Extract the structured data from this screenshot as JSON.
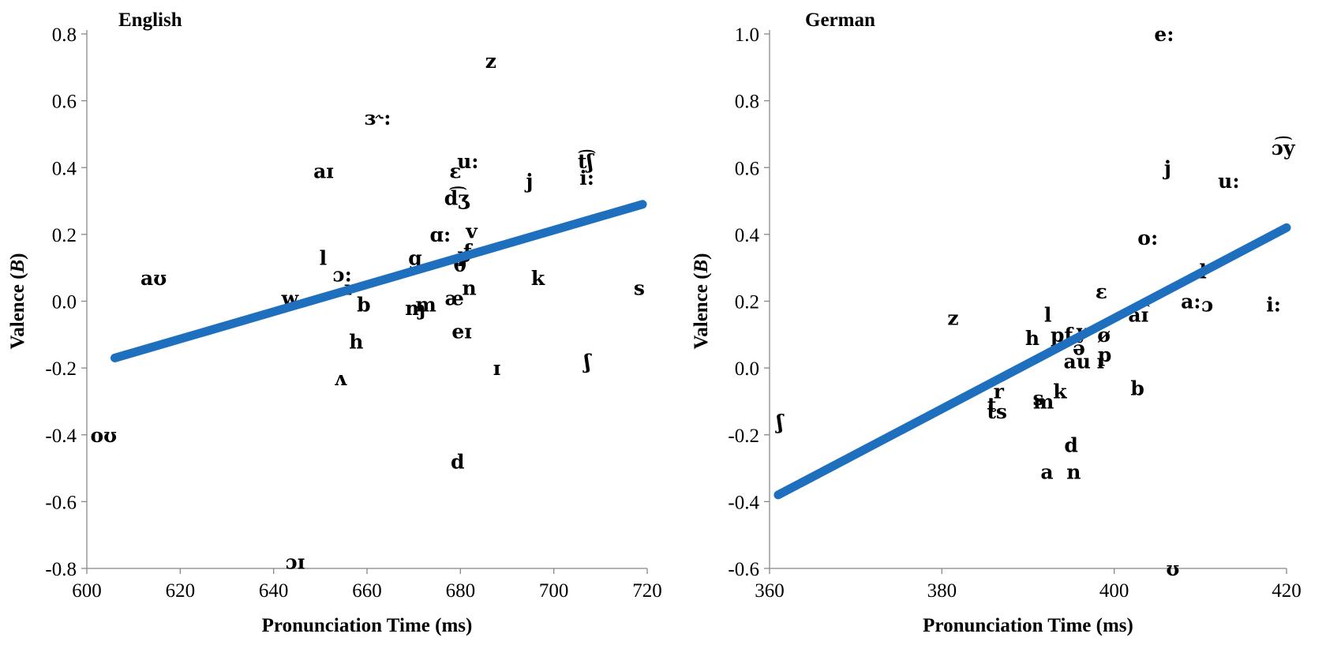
{
  "colors": {
    "trendline": "#1f6fbf",
    "axis": "#888888",
    "text": "#000000"
  },
  "chart_data": [
    {
      "type": "scatter",
      "title": "English",
      "xlabel": "Pronunciation Time (ms)",
      "ylabel": "Valence (B)",
      "ylabel_main": "Valence (",
      "ylabel_italic": "B",
      "ylabel_end": ")",
      "xlim": [
        600,
        720
      ],
      "ylim": [
        -0.8,
        0.8
      ],
      "xticks": [
        600,
        620,
        640,
        660,
        680,
        700,
        720
      ],
      "xtick_labels": [
        "600",
        "620",
        "640",
        "660",
        "680",
        "700",
        "720"
      ],
      "yticks": [
        -0.8,
        -0.6,
        -0.4,
        -0.2,
        0.0,
        0.2,
        0.4,
        0.6,
        0.8
      ],
      "ytick_labels": [
        "-0.8",
        "-0.6",
        "-0.4",
        "-0.2",
        "0.0",
        "0.2",
        "0.4",
        "0.6",
        "0.8"
      ],
      "grid": false,
      "trendline": {
        "x": [
          606,
          719
        ],
        "y": [
          -0.17,
          0.29
        ]
      },
      "points": [
        {
          "label": "z",
          "x": 686.5,
          "y": 0.72
        },
        {
          "label": "ɜ˞:",
          "x": 662.3,
          "y": 0.55
        },
        {
          "label": "aɪ",
          "x": 650.7,
          "y": 0.39
        },
        {
          "label": "ɛ",
          "x": 678.9,
          "y": 0.39
        },
        {
          "label": "u:",
          "x": 681.6,
          "y": 0.42
        },
        {
          "label": "t͡ʃ",
          "x": 706.8,
          "y": 0.42
        },
        {
          "label": "i:",
          "x": 707.1,
          "y": 0.37
        },
        {
          "label": "j",
          "x": 694.8,
          "y": 0.36
        },
        {
          "label": "d͡ʒ",
          "x": 679.2,
          "y": 0.31
        },
        {
          "label": "ɑ:",
          "x": 675.7,
          "y": 0.2
        },
        {
          "label": "v",
          "x": 682.4,
          "y": 0.21
        },
        {
          "label": "f",
          "x": 681.5,
          "y": 0.15
        },
        {
          "label": "l",
          "x": 650.6,
          "y": 0.13
        },
        {
          "label": "ɔ:",
          "x": 654.7,
          "y": 0.08
        },
        {
          "label": "g",
          "x": 670.3,
          "y": 0.13
        },
        {
          "label": "θ",
          "x": 679.9,
          "y": 0.11
        },
        {
          "label": "p",
          "x": 680.8,
          "y": 0.14
        },
        {
          "label": "aʊ",
          "x": 614.3,
          "y": 0.07
        },
        {
          "label": "k",
          "x": 696.6,
          "y": 0.07
        },
        {
          "label": "s",
          "x": 718.3,
          "y": 0.04
        },
        {
          "label": "n",
          "x": 681.9,
          "y": 0.04
        },
        {
          "label": "æ",
          "x": 678.7,
          "y": 0.01
        },
        {
          "label": "w",
          "x": 643.5,
          "y": 0.01
        },
        {
          "label": "r",
          "x": 656.2,
          "y": 0.04
        },
        {
          "label": "b",
          "x": 659.3,
          "y": -0.01
        },
        {
          "label": "ɱ",
          "x": 670.4,
          "y": -0.02
        },
        {
          "label": "m",
          "x": 672.6,
          "y": -0.01
        },
        {
          "label": "eɪ",
          "x": 680.3,
          "y": -0.09
        },
        {
          "label": "h",
          "x": 657.7,
          "y": -0.12
        },
        {
          "label": "ʃ",
          "x": 707.2,
          "y": -0.18
        },
        {
          "label": "ɪ",
          "x": 687.8,
          "y": -0.2
        },
        {
          "label": "ʌ",
          "x": 654.3,
          "y": -0.23
        },
        {
          "label": "oʊ",
          "x": 603.6,
          "y": -0.4
        },
        {
          "label": "d",
          "x": 679.4,
          "y": -0.48
        },
        {
          "label": "ɔɪ",
          "x": 644.6,
          "y": -0.78
        }
      ]
    },
    {
      "type": "scatter",
      "title": "German",
      "xlabel": "Pronunciation Time (ms)",
      "ylabel": "Valence (B)",
      "ylabel_main": "Valence (",
      "ylabel_italic": "B",
      "ylabel_end": ")",
      "xlim": [
        360,
        420
      ],
      "ylim": [
        -0.6,
        1.0
      ],
      "xticks": [
        360,
        380,
        400,
        420
      ],
      "xtick_labels": [
        "360",
        "380",
        "400",
        "420"
      ],
      "yticks": [
        -0.6,
        -0.4,
        -0.2,
        0.0,
        0.2,
        0.4,
        0.6,
        0.8,
        1.0
      ],
      "ytick_labels": [
        "-0.6",
        "-0.4",
        "-0.2",
        "0.0",
        "0.2",
        "0.4",
        "0.6",
        "0.8",
        "1.0"
      ],
      "grid": false,
      "trendline": {
        "x": [
          361,
          420
        ],
        "y": [
          -0.38,
          0.42
        ]
      },
      "points": [
        {
          "label": "e:",
          "x": 405.8,
          "y": 1.0
        },
        {
          "label": "ɔ͡y",
          "x": 419.6,
          "y": 0.66
        },
        {
          "label": "j",
          "x": 406.2,
          "y": 0.6
        },
        {
          "label": "u:",
          "x": 413.3,
          "y": 0.56
        },
        {
          "label": "o:",
          "x": 403.9,
          "y": 0.39
        },
        {
          "label": "l",
          "x": 410.3,
          "y": 0.29
        },
        {
          "label": "ɛ",
          "x": 398.5,
          "y": 0.23
        },
        {
          "label": "a:",
          "x": 408.9,
          "y": 0.2
        },
        {
          "label": "ɔ",
          "x": 410.8,
          "y": 0.19
        },
        {
          "label": "i:",
          "x": 418.5,
          "y": 0.19
        },
        {
          "label": "a͡ɪ",
          "x": 402.8,
          "y": 0.16
        },
        {
          "label": "z",
          "x": 381.3,
          "y": 0.15
        },
        {
          "label": "l",
          "x": 392.3,
          "y": 0.16
        },
        {
          "label": "h",
          "x": 390.5,
          "y": 0.09
        },
        {
          "label": "pf",
          "x": 393.9,
          "y": 0.1
        },
        {
          "label": "y",
          "x": 396.3,
          "y": 0.11
        },
        {
          "label": "ø",
          "x": 398.8,
          "y": 0.1
        },
        {
          "label": "ə",
          "x": 395.9,
          "y": 0.06
        },
        {
          "label": "p",
          "x": 398.9,
          "y": 0.04
        },
        {
          "label": "au",
          "x": 395.7,
          "y": 0.02
        },
        {
          "label": "ɪ",
          "x": 398.4,
          "y": 0.02
        },
        {
          "label": "b",
          "x": 402.7,
          "y": -0.06
        },
        {
          "label": "r",
          "x": 386.6,
          "y": -0.07
        },
        {
          "label": "k",
          "x": 393.7,
          "y": -0.07
        },
        {
          "label": "s",
          "x": 391.2,
          "y": -0.09
        },
        {
          "label": "m",
          "x": 391.8,
          "y": -0.1
        },
        {
          "label": "t",
          "x": 385.8,
          "y": -0.11
        },
        {
          "label": "ts",
          "x": 386.4,
          "y": -0.13
        },
        {
          "label": "ʃ",
          "x": 361.2,
          "y": -0.16
        },
        {
          "label": "d",
          "x": 395.0,
          "y": -0.23
        },
        {
          "label": "a",
          "x": 392.2,
          "y": -0.31
        },
        {
          "label": "n",
          "x": 395.3,
          "y": -0.31
        },
        {
          "label": "ʊ",
          "x": 406.8,
          "y": -0.6
        }
      ]
    }
  ]
}
